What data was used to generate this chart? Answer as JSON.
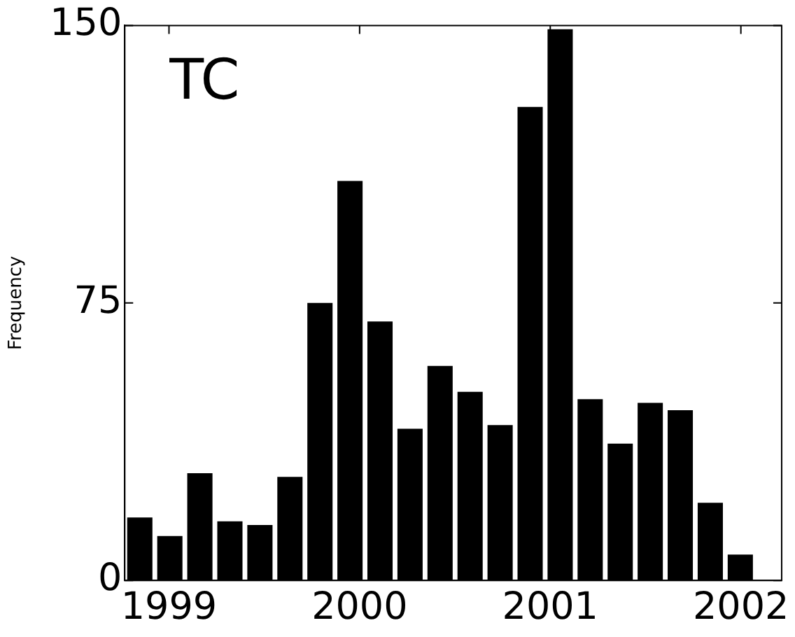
{
  "chart_data": {
    "type": "histogram",
    "ylabel": "Frequency",
    "annotations": [
      "TC"
    ],
    "bins": [
      1998.768,
      1998.926,
      1999.083,
      1999.241,
      1999.398,
      1999.556,
      1999.713,
      1999.871,
      2000.028,
      2000.186,
      2000.343,
      2000.501,
      2000.658,
      2000.816,
      2000.973,
      2001.131,
      2001.288,
      2001.446,
      2001.603,
      2001.761,
      2001.918,
      2002.076
    ],
    "values": [
      17,
      12,
      29,
      16,
      15,
      28,
      75,
      108,
      70,
      41,
      58,
      51,
      42,
      128,
      149,
      49,
      37,
      48,
      46,
      21,
      7
    ],
    "color": "#000000",
    "xlim": [
      1998.768,
      2002.214
    ],
    "xticks": [
      1999,
      2000,
      2001,
      2002
    ],
    "ylim": [
      0,
      150
    ],
    "yticks": [
      0,
      75,
      150
    ],
    "grid": false,
    "legend": false
  }
}
